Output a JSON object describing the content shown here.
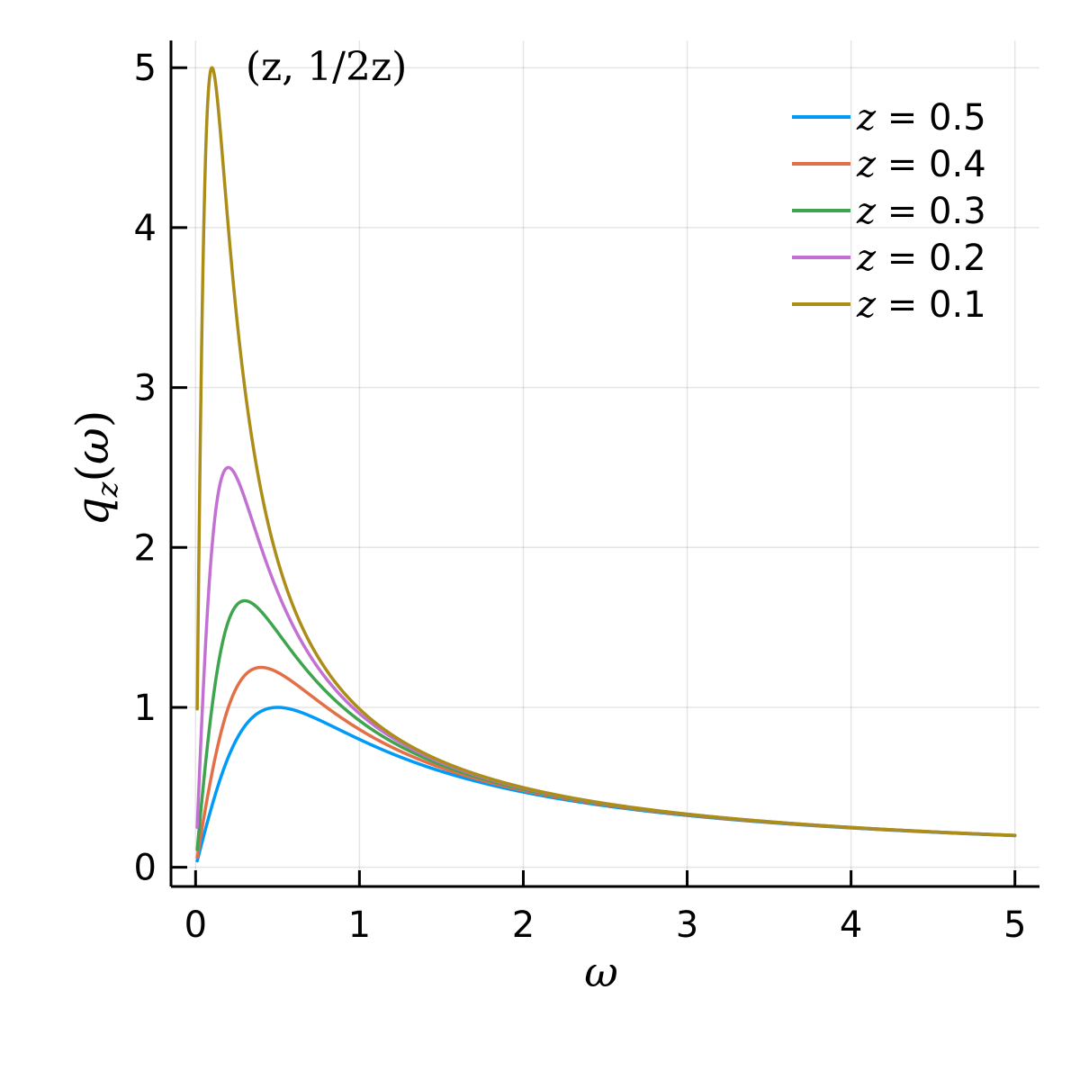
{
  "chart_data": {
    "type": "line",
    "xlabel": "ω",
    "ylabel": "q_z(ω)",
    "xlim": [
      -0.15,
      5.15
    ],
    "ylim": [
      -0.12,
      5.17
    ],
    "xticks": [
      0,
      1,
      2,
      3,
      4,
      5
    ],
    "yticks": [
      0,
      1,
      2,
      3,
      4,
      5
    ],
    "xtick_labels": [
      "0",
      "1",
      "2",
      "3",
      "4",
      "5"
    ],
    "ytick_labels": [
      "0",
      "1",
      "2",
      "3",
      "4",
      "5"
    ],
    "grid": true,
    "legend_position": "top-right",
    "annotation": {
      "text": "(z, 1/2z)",
      "x": 0.25,
      "y": 5.0
    },
    "x_range": [
      0.01,
      5
    ],
    "series": [
      {
        "name": "z = 0.5",
        "z": 0.5,
        "color": "#009af9"
      },
      {
        "name": "z = 0.4",
        "z": 0.4,
        "color": "#e26f46"
      },
      {
        "name": "z = 0.3",
        "z": 0.3,
        "color": "#3ea44e"
      },
      {
        "name": "z = 0.2",
        "z": 0.2,
        "color": "#c271d2"
      },
      {
        "name": "z = 0.1",
        "z": 0.1,
        "color": "#ac8d18"
      }
    ],
    "curve_formula": "q_z(ω) = ω / (ω² + z²)"
  }
}
